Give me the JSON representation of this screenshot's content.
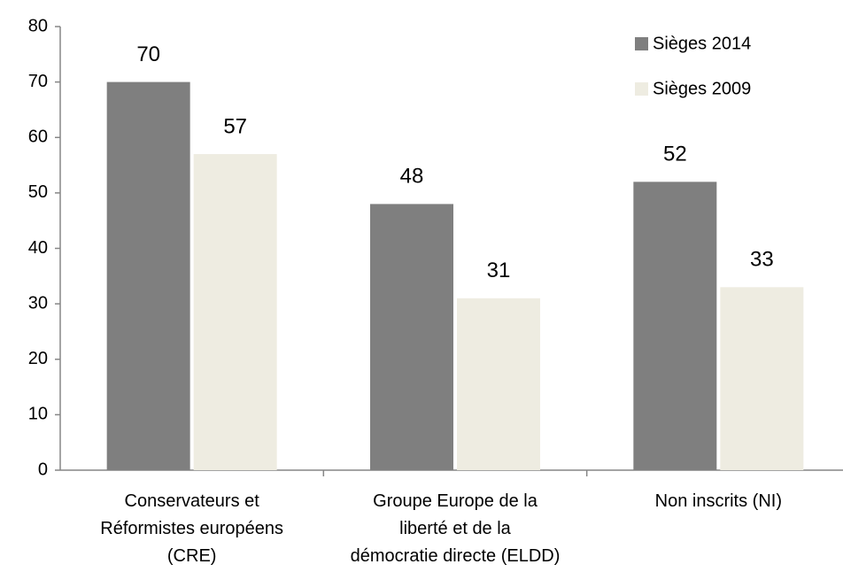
{
  "chart_data": {
    "type": "bar",
    "categories": [
      "Conservateurs et Réformistes européens (CRE)",
      "Groupe Europe de la liberté et de la démocratie directe (ELDD)",
      "Non inscrits (NI)"
    ],
    "series": [
      {
        "name": "Sièges 2014",
        "color": "#7f7f7f",
        "values": [
          70,
          48,
          52
        ]
      },
      {
        "name": "Sièges 2009",
        "color": "#eeece1",
        "values": [
          57,
          31,
          33
        ]
      }
    ],
    "ylim": [
      0,
      80
    ],
    "yticks": [
      0,
      10,
      20,
      30,
      40,
      50,
      60,
      70,
      80
    ],
    "grid": false,
    "legend": "top-right"
  }
}
